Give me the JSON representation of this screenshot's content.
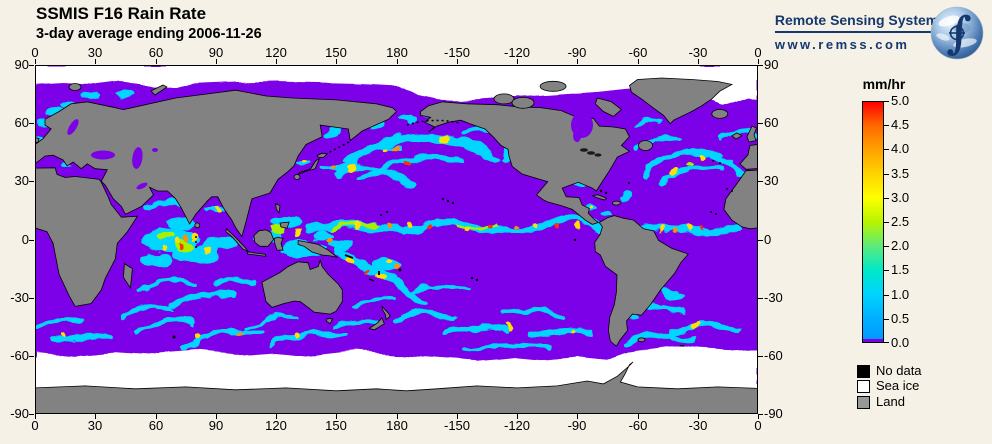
{
  "title": "SSMIS F16 Rain Rate",
  "subtitle": "3-day average ending 2006-11-26",
  "branding": {
    "name": "Remote Sensing Systems",
    "url": "www.remss.com"
  },
  "map": {
    "lon_labels": [
      "0",
      "30",
      "60",
      "90",
      "120",
      "150",
      "180",
      "-150",
      "-120",
      "-90",
      "-60",
      "-30",
      "0"
    ],
    "lat_labels": [
      "90",
      "60",
      "30",
      "0",
      "-30",
      "-60",
      "-90"
    ]
  },
  "colorbar": {
    "title": "mm/hr",
    "ticks": [
      "5.0",
      "4.5",
      "4.0",
      "3.5",
      "3.0",
      "2.5",
      "2.0",
      "1.5",
      "1.0",
      "0.5",
      "0.0"
    ],
    "gradient": [
      "#ff0000",
      "#ff6a00",
      "#ffa200",
      "#ffd400",
      "#fdff00",
      "#b8f400",
      "#5ceb7a",
      "#00e8c8",
      "#00d4ff",
      "#00b0ff",
      "#0098ff"
    ],
    "zero_color": "#7c00e8",
    "range": [
      0.0,
      5.0
    ]
  },
  "legend": {
    "items": [
      {
        "label": "No data",
        "color": "#000000"
      },
      {
        "label": "Sea ice",
        "color": "#ffffff"
      },
      {
        "label": "Land",
        "color": "#989898"
      }
    ]
  },
  "colors": {
    "background": "#f5f1e6",
    "ocean": "#7c00e8",
    "land": "#828282",
    "coast": "#000000",
    "ice": "#ffffff",
    "rain_light": "#00d6ff",
    "brand": "#15386e"
  }
}
